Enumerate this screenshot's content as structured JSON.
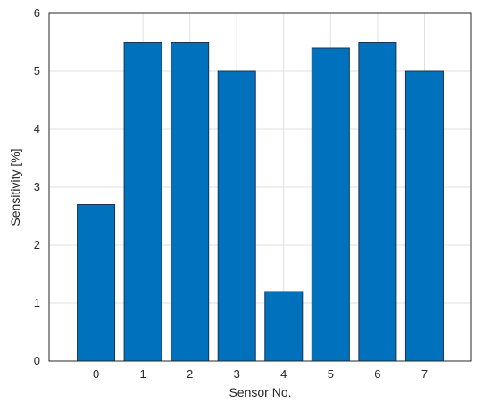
{
  "chart_data": {
    "type": "bar",
    "categories": [
      "0",
      "1",
      "2",
      "3",
      "4",
      "5",
      "6",
      "7"
    ],
    "values": [
      2.7,
      5.5,
      5.5,
      5.0,
      1.2,
      5.4,
      5.5,
      5.0
    ],
    "title": "",
    "xlabel": "Sensor No.",
    "ylabel": "Sensitivity [%]",
    "ylim": [
      0,
      6
    ],
    "xlim": [
      -1,
      8
    ],
    "yticks": [
      "0",
      "1",
      "2",
      "3",
      "4",
      "5",
      "6"
    ],
    "grid": true,
    "bar_color": "#0072BD"
  }
}
